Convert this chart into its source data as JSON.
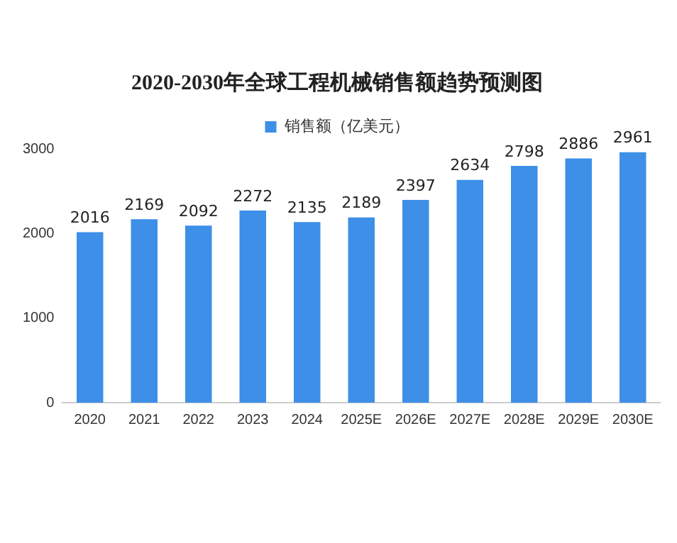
{
  "chart_data": {
    "type": "bar",
    "title": "2020-2030年全球工程机械销售额趋势预测图",
    "categories": [
      "2020",
      "2021",
      "2022",
      "2023",
      "2024",
      "2025E",
      "2026E",
      "2027E",
      "2028E",
      "2029E",
      "2030E"
    ],
    "series": [
      {
        "name": "销售额（亿美元）",
        "color": "#3d8fe8",
        "values": [
          2016,
          2169,
          2092,
          2272,
          2135,
          2189,
          2397,
          2634,
          2798,
          2886,
          2961
        ]
      }
    ],
    "ylim": [
      0,
      3000
    ],
    "yticks": [
      0,
      1000,
      2000,
      3000
    ],
    "grid": false,
    "legend": "top",
    "data_labels": true
  }
}
